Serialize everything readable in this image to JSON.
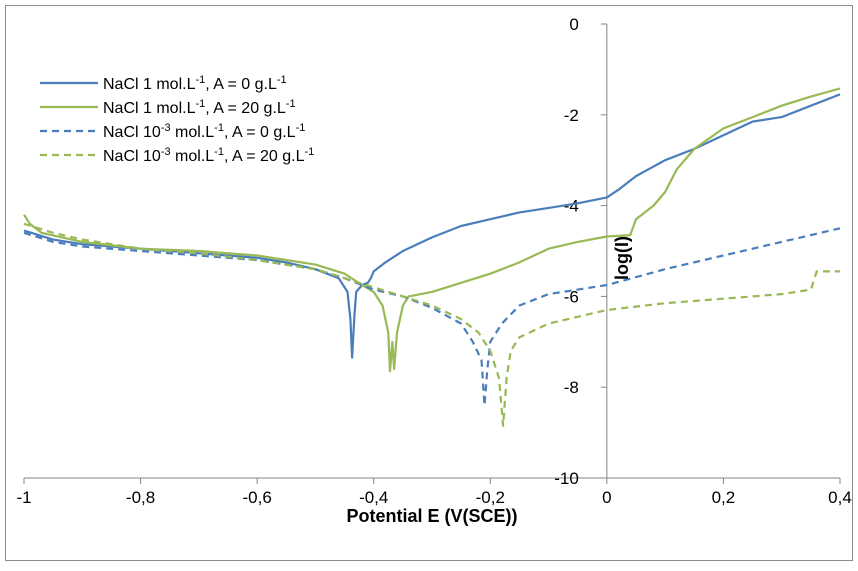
{
  "chart_data": {
    "type": "line",
    "title": "",
    "xlabel": "Potential E (V(SCE))",
    "ylabel": "log(I)",
    "xlim": [
      -1,
      0.4
    ],
    "ylim": [
      -10,
      0
    ],
    "x_tick_labels": [
      "-1",
      "-0,8",
      "-0,6",
      "-0,4",
      "-0,2",
      "0",
      "0,2",
      "0,4"
    ],
    "y_tick_labels": [
      "0",
      "-2",
      "-4",
      "-6",
      "-8",
      "-10"
    ],
    "x_ticks": [
      -1,
      -0.8,
      -0.6,
      -0.4,
      -0.2,
      0,
      0.2,
      0.4
    ],
    "y_ticks": [
      0,
      -2,
      -4,
      -6,
      -8,
      -10
    ],
    "grid": false,
    "legend_position": "top-left",
    "series": [
      {
        "name": "NaCl 1 mol.L-1, A = 0 g.L-1",
        "legend": {
          "pre": "NaCl 1 mol.L",
          "sup": "-1",
          "post": ", A = 0 g.L",
          "sup2": "-1"
        },
        "color": "#4a7ebb",
        "dash": "solid",
        "points": [
          [
            -1,
            -4.55
          ],
          [
            -0.95,
            -4.75
          ],
          [
            -0.9,
            -4.85
          ],
          [
            -0.8,
            -4.95
          ],
          [
            -0.7,
            -5.05
          ],
          [
            -0.6,
            -5.15
          ],
          [
            -0.55,
            -5.25
          ],
          [
            -0.5,
            -5.4
          ],
          [
            -0.46,
            -5.6
          ],
          [
            -0.445,
            -5.9
          ],
          [
            -0.44,
            -6.5
          ],
          [
            -0.437,
            -7.35
          ],
          [
            -0.433,
            -6.4
          ],
          [
            -0.43,
            -5.9
          ],
          [
            -0.42,
            -5.75
          ],
          [
            -0.41,
            -5.7
          ],
          [
            -0.405,
            -5.6
          ],
          [
            -0.4,
            -5.45
          ],
          [
            -0.38,
            -5.25
          ],
          [
            -0.35,
            -5.0
          ],
          [
            -0.3,
            -4.7
          ],
          [
            -0.25,
            -4.45
          ],
          [
            -0.2,
            -4.3
          ],
          [
            -0.15,
            -4.15
          ],
          [
            -0.1,
            -4.05
          ],
          [
            -0.05,
            -3.95
          ],
          [
            0,
            -3.82
          ],
          [
            0.02,
            -3.65
          ],
          [
            0.05,
            -3.35
          ],
          [
            0.1,
            -3.0
          ],
          [
            0.15,
            -2.75
          ],
          [
            0.2,
            -2.45
          ],
          [
            0.25,
            -2.15
          ],
          [
            0.3,
            -2.05
          ],
          [
            0.35,
            -1.8
          ],
          [
            0.4,
            -1.55
          ]
        ]
      },
      {
        "name": "NaCl 1 mol.L-1, A = 20 g.L-1",
        "legend": {
          "pre": "NaCl 1 mol.L",
          "sup": "-1",
          "post": ", A = 20 g.L",
          "sup2": "-1"
        },
        "color": "#98b954",
        "dash": "solid",
        "points": [
          [
            -1,
            -4.2
          ],
          [
            -0.99,
            -4.4
          ],
          [
            -0.97,
            -4.6
          ],
          [
            -0.9,
            -4.8
          ],
          [
            -0.8,
            -4.95
          ],
          [
            -0.7,
            -5.0
          ],
          [
            -0.6,
            -5.1
          ],
          [
            -0.5,
            -5.3
          ],
          [
            -0.45,
            -5.5
          ],
          [
            -0.42,
            -5.75
          ],
          [
            -0.4,
            -5.9
          ],
          [
            -0.385,
            -6.2
          ],
          [
            -0.375,
            -6.8
          ],
          [
            -0.372,
            -7.65
          ],
          [
            -0.368,
            -7.0
          ],
          [
            -0.365,
            -7.6
          ],
          [
            -0.36,
            -6.8
          ],
          [
            -0.35,
            -6.2
          ],
          [
            -0.34,
            -6.0
          ],
          [
            -0.3,
            -5.9
          ],
          [
            -0.25,
            -5.7
          ],
          [
            -0.2,
            -5.5
          ],
          [
            -0.15,
            -5.25
          ],
          [
            -0.1,
            -4.95
          ],
          [
            -0.05,
            -4.8
          ],
          [
            0,
            -4.68
          ],
          [
            0.04,
            -4.65
          ],
          [
            0.05,
            -4.3
          ],
          [
            0.08,
            -4.0
          ],
          [
            0.1,
            -3.7
          ],
          [
            0.12,
            -3.2
          ],
          [
            0.15,
            -2.75
          ],
          [
            0.2,
            -2.3
          ],
          [
            0.25,
            -2.05
          ],
          [
            0.3,
            -1.8
          ],
          [
            0.35,
            -1.6
          ],
          [
            0.4,
            -1.42
          ]
        ]
      },
      {
        "name": "NaCl 10-3 mol.L-1, A = 0 g.L-1",
        "legend": {
          "pre": "NaCl 10",
          "sup": "-3",
          "post": " mol.L",
          "sup2": "-1",
          "post2": ", A = 0 g.L",
          "sup3": "-1"
        },
        "color": "#4a7ebb",
        "dash": "dashed",
        "points": [
          [
            -1,
            -4.6
          ],
          [
            -0.95,
            -4.8
          ],
          [
            -0.9,
            -4.9
          ],
          [
            -0.8,
            -5.0
          ],
          [
            -0.7,
            -5.1
          ],
          [
            -0.6,
            -5.2
          ],
          [
            -0.5,
            -5.4
          ],
          [
            -0.45,
            -5.6
          ],
          [
            -0.4,
            -5.85
          ],
          [
            -0.35,
            -6.0
          ],
          [
            -0.3,
            -6.25
          ],
          [
            -0.25,
            -6.6
          ],
          [
            -0.23,
            -7.0
          ],
          [
            -0.215,
            -7.4
          ],
          [
            -0.21,
            -8.4
          ],
          [
            -0.205,
            -7.6
          ],
          [
            -0.2,
            -7.0
          ],
          [
            -0.18,
            -6.6
          ],
          [
            -0.15,
            -6.2
          ],
          [
            -0.1,
            -5.95
          ],
          [
            -0.05,
            -5.85
          ],
          [
            0,
            -5.75
          ],
          [
            0.1,
            -5.4
          ],
          [
            0.2,
            -5.1
          ],
          [
            0.3,
            -4.8
          ],
          [
            0.4,
            -4.5
          ]
        ]
      },
      {
        "name": "NaCl 10-3 mol.L-1, A = 20 g.L-1",
        "legend": {
          "pre": "NaCl 10",
          "sup": "-3",
          "post": " mol.L",
          "sup2": "-1",
          "post2": ", A = 20 g.L",
          "sup3": "-1"
        },
        "color": "#98b954",
        "dash": "dashed",
        "points": [
          [
            -1,
            -4.4
          ],
          [
            -0.95,
            -4.6
          ],
          [
            -0.9,
            -4.75
          ],
          [
            -0.8,
            -4.95
          ],
          [
            -0.7,
            -5.05
          ],
          [
            -0.6,
            -5.2
          ],
          [
            -0.5,
            -5.4
          ],
          [
            -0.45,
            -5.6
          ],
          [
            -0.4,
            -5.8
          ],
          [
            -0.35,
            -6.0
          ],
          [
            -0.3,
            -6.2
          ],
          [
            -0.25,
            -6.5
          ],
          [
            -0.22,
            -6.8
          ],
          [
            -0.2,
            -7.2
          ],
          [
            -0.185,
            -7.8
          ],
          [
            -0.178,
            -8.85
          ],
          [
            -0.172,
            -7.8
          ],
          [
            -0.165,
            -7.2
          ],
          [
            -0.15,
            -6.9
          ],
          [
            -0.1,
            -6.6
          ],
          [
            -0.05,
            -6.45
          ],
          [
            0,
            -6.3
          ],
          [
            0.1,
            -6.15
          ],
          [
            0.2,
            -6.05
          ],
          [
            0.3,
            -5.95
          ],
          [
            0.35,
            -5.85
          ],
          [
            0.36,
            -5.45
          ],
          [
            0.37,
            -5.45
          ],
          [
            0.4,
            -5.45
          ]
        ]
      }
    ]
  }
}
